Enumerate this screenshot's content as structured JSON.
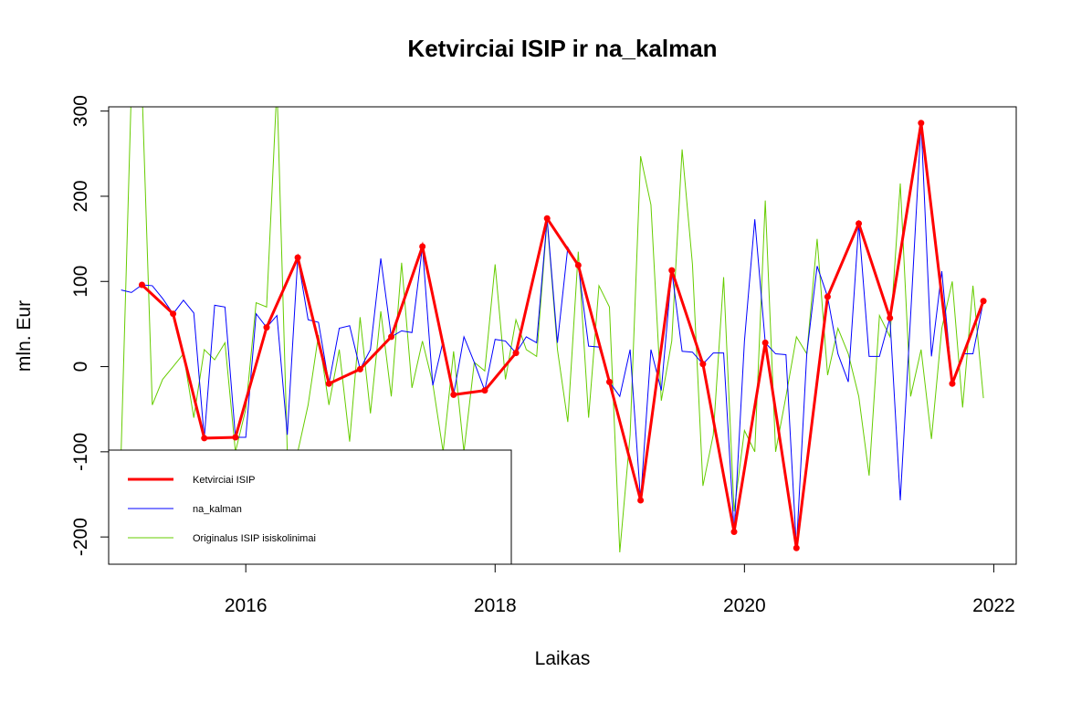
{
  "chart_data": {
    "type": "line",
    "title": "Ketvirciai ISIP ir na_kalman",
    "x_label": "Laikas",
    "y_label": "mln. Eur",
    "xlim": [
      2014.9,
      2022.18
    ],
    "ylim": [
      -232,
      305
    ],
    "xticks": [
      2016,
      2018,
      2020,
      2022
    ],
    "yticks": [
      -200,
      -100,
      0,
      100,
      200,
      300
    ],
    "legend": "bottomleft",
    "series": [
      {
        "name": "Ketvirciai ISIP",
        "color": "#ff0000",
        "points": true,
        "x": [
          2015.167,
          2015.417,
          2015.667,
          2015.917,
          2016.167,
          2016.417,
          2016.667,
          2016.917,
          2017.167,
          2017.417,
          2017.667,
          2017.917,
          2018.167,
          2018.417,
          2018.667,
          2018.917,
          2019.167,
          2019.417,
          2019.667,
          2019.917,
          2020.167,
          2020.417,
          2020.667,
          2020.917,
          2021.167,
          2021.417,
          2021.667,
          2021.917
        ],
        "values": [
          96,
          62,
          -84,
          -83,
          46,
          128,
          -20,
          -3,
          35,
          141,
          -33,
          -28,
          16,
          174,
          119,
          -18,
          -157,
          113,
          3,
          -194,
          28,
          -213,
          82,
          168,
          57,
          286,
          -20,
          77
        ]
      },
      {
        "name": "na_kalman",
        "color": "#0000ff",
        "points": false,
        "x": [
          2015,
          2015.083,
          2015.167,
          2015.25,
          2015.333,
          2015.417,
          2015.5,
          2015.583,
          2015.667,
          2015.75,
          2015.833,
          2015.917,
          2016,
          2016.083,
          2016.167,
          2016.25,
          2016.333,
          2016.417,
          2016.5,
          2016.583,
          2016.667,
          2016.75,
          2016.833,
          2016.917,
          2017,
          2017.083,
          2017.167,
          2017.25,
          2017.333,
          2017.417,
          2017.5,
          2017.583,
          2017.667,
          2017.75,
          2017.833,
          2017.917,
          2018,
          2018.083,
          2018.167,
          2018.25,
          2018.333,
          2018.417,
          2018.5,
          2018.583,
          2018.667,
          2018.75,
          2018.833,
          2018.917,
          2019,
          2019.083,
          2019.167,
          2019.25,
          2019.333,
          2019.417,
          2019.5,
          2019.583,
          2019.667,
          2019.75,
          2019.833,
          2019.917,
          2020,
          2020.083,
          2020.167,
          2020.25,
          2020.333,
          2020.417,
          2020.5,
          2020.583,
          2020.667,
          2020.75,
          2020.833,
          2020.917,
          2021,
          2021.083,
          2021.167,
          2021.25,
          2021.333,
          2021.417,
          2021.5,
          2021.583,
          2021.667,
          2021.75,
          2021.833,
          2021.917
        ],
        "values": [
          90,
          87,
          96,
          95,
          80,
          62,
          78,
          63,
          -84,
          72,
          70,
          -83,
          -83,
          62,
          46,
          60,
          -80,
          128,
          55,
          52,
          -20,
          45,
          48,
          -3,
          20,
          127,
          35,
          42,
          40,
          141,
          -22,
          30,
          -33,
          35,
          5,
          -28,
          32,
          30,
          16,
          35,
          28,
          174,
          28,
          140,
          119,
          24,
          23,
          -18,
          -35,
          20,
          -157,
          20,
          -28,
          113,
          18,
          17,
          3,
          16,
          16,
          -194,
          30,
          173,
          28,
          15,
          14,
          -213,
          15,
          118,
          82,
          15,
          -18,
          168,
          12,
          12,
          57,
          -157,
          60,
          286,
          12,
          112,
          -20,
          15,
          15,
          77
        ]
      },
      {
        "name": "Originalus ISIP isiskolinimai",
        "color": "#66cc00",
        "points": false,
        "x": [
          2015,
          2015.083,
          2015.167,
          2015.25,
          2015.333,
          2015.417,
          2015.5,
          2015.583,
          2015.667,
          2015.75,
          2015.833,
          2015.917,
          2016,
          2016.083,
          2016.167,
          2016.25,
          2016.333,
          2016.417,
          2016.5,
          2016.583,
          2016.667,
          2016.75,
          2016.833,
          2016.917,
          2017,
          2017.083,
          2017.167,
          2017.25,
          2017.333,
          2017.417,
          2017.5,
          2017.583,
          2017.667,
          2017.75,
          2017.833,
          2017.917,
          2018,
          2018.083,
          2018.167,
          2018.25,
          2018.333,
          2018.417,
          2018.5,
          2018.583,
          2018.667,
          2018.75,
          2018.833,
          2018.917,
          2019,
          2019.083,
          2019.167,
          2019.25,
          2019.333,
          2019.417,
          2019.5,
          2019.583,
          2019.667,
          2019.75,
          2019.833,
          2019.917,
          2020,
          2020.083,
          2020.167,
          2020.25,
          2020.333,
          2020.417,
          2020.5,
          2020.583,
          2020.667,
          2020.75,
          2020.833,
          2020.917,
          2021,
          2021.083,
          2021.167,
          2021.25,
          2021.333,
          2021.417,
          2021.5,
          2021.583,
          2021.667,
          2021.75,
          2021.833,
          2021.917
        ],
        "values": [
          -100,
          330,
          330,
          -45,
          -15,
          0,
          15,
          -60,
          20,
          8,
          28,
          -100,
          -50,
          75,
          70,
          330,
          -100,
          -100,
          -45,
          37,
          -45,
          20,
          -88,
          58,
          -55,
          65,
          -35,
          122,
          -25,
          30,
          -20,
          -100,
          18,
          -100,
          5,
          -5,
          120,
          -15,
          55,
          20,
          12,
          172,
          20,
          -65,
          135,
          -60,
          95,
          70,
          -218,
          -80,
          247,
          190,
          -40,
          30,
          255,
          120,
          -140,
          -80,
          105,
          -170,
          -75,
          -100,
          195,
          -100,
          -35,
          35,
          15,
          150,
          -10,
          45,
          15,
          -35,
          -128,
          60,
          35,
          215,
          -35,
          20,
          -85,
          45,
          100,
          -48,
          95,
          -37
        ]
      }
    ]
  }
}
